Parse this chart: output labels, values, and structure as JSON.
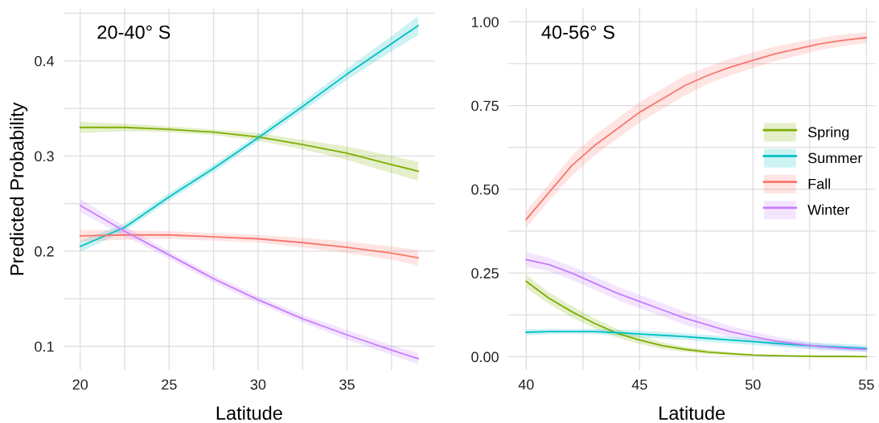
{
  "chart_data": [
    {
      "type": "line",
      "title": "20-40° S",
      "xlabel": "Latitude",
      "ylabel": "Predicted Probability",
      "x": [
        20,
        22.5,
        25,
        27.5,
        30,
        32.5,
        35,
        37.5,
        39
      ],
      "xlim": [
        19.05,
        39.95
      ],
      "ylim": [
        0.075,
        0.455
      ],
      "xticks": [
        20,
        {
          "value": 22.5,
          "label": null
        },
        25,
        {
          "value": 27.5,
          "label": null
        },
        30,
        {
          "value": 32.5,
          "label": null
        },
        35,
        {
          "value": 37.5,
          "label": null
        }
      ],
      "yticks": [
        0.1,
        {
          "value": 0.15,
          "label": null
        },
        0.2,
        {
          "value": 0.25,
          "label": null
        },
        0.3,
        {
          "value": 0.35,
          "label": null
        },
        0.4,
        {
          "value": 0.45,
          "label": null
        }
      ],
      "grid": true,
      "legend": false,
      "marker": "none",
      "line_style": "solid",
      "series": [
        {
          "color": "#7cae00",
          "values": [
            0.33,
            0.33,
            0.328,
            0.325,
            0.32,
            0.312,
            0.303,
            0.291,
            0.284
          ],
          "lower": [
            0.324,
            0.326,
            0.325,
            0.322,
            0.316,
            0.307,
            0.296,
            0.282,
            0.274
          ],
          "upper": [
            0.336,
            0.334,
            0.331,
            0.328,
            0.324,
            0.317,
            0.31,
            0.3,
            0.294
          ]
        },
        {
          "color": "#00bfc4",
          "values": [
            0.205,
            0.225,
            0.257,
            0.287,
            0.319,
            0.352,
            0.386,
            0.418,
            0.437
          ],
          "lower": [
            0.199,
            0.221,
            0.253,
            0.283,
            0.315,
            0.347,
            0.38,
            0.41,
            0.427
          ],
          "upper": [
            0.211,
            0.229,
            0.261,
            0.291,
            0.323,
            0.357,
            0.392,
            0.426,
            0.447
          ]
        },
        {
          "color": "#f8766d",
          "values": [
            0.216,
            0.217,
            0.217,
            0.215,
            0.213,
            0.209,
            0.204,
            0.198,
            0.193
          ],
          "lower": [
            0.21,
            0.212,
            0.213,
            0.211,
            0.209,
            0.204,
            0.198,
            0.191,
            0.185
          ],
          "upper": [
            0.222,
            0.222,
            0.221,
            0.219,
            0.217,
            0.214,
            0.21,
            0.205,
            0.201
          ]
        },
        {
          "color": "#c77cff",
          "values": [
            0.248,
            0.221,
            0.196,
            0.171,
            0.149,
            0.129,
            0.112,
            0.096,
            0.087
          ],
          "lower": [
            0.241,
            0.216,
            0.192,
            0.167,
            0.145,
            0.125,
            0.107,
            0.091,
            0.081
          ],
          "upper": [
            0.255,
            0.226,
            0.2,
            0.175,
            0.153,
            0.133,
            0.117,
            0.101,
            0.093
          ]
        }
      ]
    },
    {
      "type": "line",
      "title": "40-56° S",
      "xlabel": "Latitude",
      "x": [
        40,
        41,
        42,
        43,
        44,
        45,
        46,
        47,
        48,
        49,
        50,
        51,
        52,
        53,
        54,
        55
      ],
      "xlim": [
        39.2,
        55.4
      ],
      "ylim": [
        -0.04,
        1.04
      ],
      "xticks": [
        40,
        {
          "value": 42.5,
          "label": null
        },
        45,
        {
          "value": 47.5,
          "label": null
        },
        50,
        {
          "value": 52.5,
          "label": null
        },
        55
      ],
      "yticks": [
        {
          "value": 0,
          "label": "0.00"
        },
        {
          "value": 0.125,
          "label": null
        },
        {
          "value": 0.25,
          "label": "0.25"
        },
        {
          "value": 0.375,
          "label": null
        },
        {
          "value": 0.5,
          "label": "0.50"
        },
        {
          "value": 0.625,
          "label": null
        },
        {
          "value": 0.75,
          "label": "0.75"
        },
        {
          "value": 0.875,
          "label": null
        },
        {
          "value": 1,
          "label": "1.00"
        }
      ],
      "grid": true,
      "legend": "right",
      "marker": "none",
      "line_style": "solid",
      "series": [
        {
          "name": "Spring",
          "color": "#7cae00",
          "values": [
            0.225,
            0.175,
            0.135,
            0.1,
            0.07,
            0.05,
            0.033,
            0.022,
            0.014,
            0.009,
            0.005,
            0.003,
            0.002,
            0.001,
            0.001,
            0
          ],
          "lower": [
            0.205,
            0.158,
            0.118,
            0.085,
            0.057,
            0.038,
            0.023,
            0.014,
            0.008,
            0.004,
            0.002,
            0.001,
            0,
            0,
            0,
            0
          ],
          "upper": [
            0.245,
            0.192,
            0.152,
            0.115,
            0.083,
            0.062,
            0.043,
            0.03,
            0.02,
            0.014,
            0.008,
            0.005,
            0.004,
            0.002,
            0.002,
            0.001
          ]
        },
        {
          "name": "Summer",
          "color": "#00bfc4",
          "values": [
            0.073,
            0.075,
            0.075,
            0.075,
            0.072,
            0.068,
            0.064,
            0.06,
            0.055,
            0.05,
            0.045,
            0.04,
            0.035,
            0.031,
            0.028,
            0.025
          ],
          "lower": [
            0.064,
            0.067,
            0.068,
            0.067,
            0.063,
            0.058,
            0.054,
            0.05,
            0.045,
            0.04,
            0.035,
            0.03,
            0.025,
            0.021,
            0.018,
            0.015
          ],
          "upper": [
            0.082,
            0.083,
            0.082,
            0.083,
            0.081,
            0.078,
            0.074,
            0.07,
            0.065,
            0.06,
            0.055,
            0.05,
            0.045,
            0.041,
            0.038,
            0.035
          ]
        },
        {
          "name": "Fall",
          "color": "#f8766d",
          "values": [
            0.41,
            0.49,
            0.57,
            0.63,
            0.68,
            0.73,
            0.77,
            0.81,
            0.84,
            0.865,
            0.885,
            0.905,
            0.92,
            0.935,
            0.945,
            0.953
          ],
          "lower": [
            0.385,
            0.465,
            0.54,
            0.6,
            0.65,
            0.7,
            0.74,
            0.78,
            0.815,
            0.84,
            0.862,
            0.883,
            0.9,
            0.917,
            0.928,
            0.937
          ],
          "upper": [
            0.435,
            0.515,
            0.6,
            0.66,
            0.71,
            0.76,
            0.8,
            0.84,
            0.865,
            0.89,
            0.908,
            0.927,
            0.94,
            0.953,
            0.962,
            0.969
          ]
        },
        {
          "name": "Winter",
          "color": "#c77cff",
          "values": [
            0.29,
            0.275,
            0.25,
            0.22,
            0.19,
            0.165,
            0.14,
            0.115,
            0.095,
            0.075,
            0.06,
            0.047,
            0.038,
            0.03,
            0.025,
            0.022
          ],
          "lower": [
            0.268,
            0.255,
            0.23,
            0.2,
            0.17,
            0.145,
            0.12,
            0.096,
            0.077,
            0.058,
            0.045,
            0.034,
            0.027,
            0.021,
            0.017,
            0.014
          ],
          "upper": [
            0.312,
            0.295,
            0.27,
            0.24,
            0.21,
            0.185,
            0.16,
            0.134,
            0.113,
            0.092,
            0.075,
            0.06,
            0.049,
            0.039,
            0.033,
            0.03
          ]
        }
      ]
    }
  ]
}
